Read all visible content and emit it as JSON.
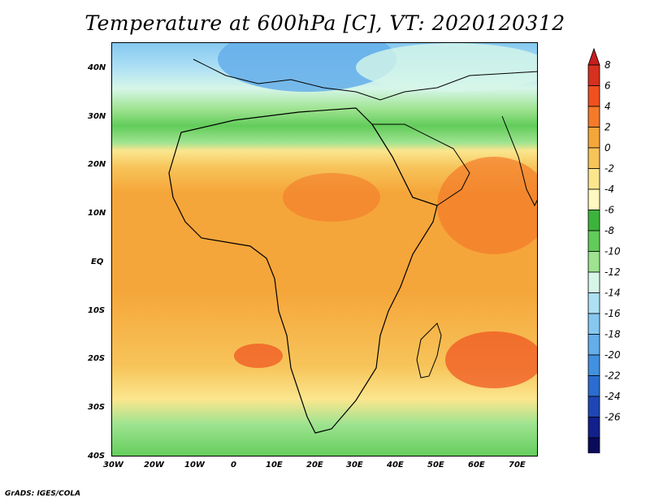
{
  "title": "Temperature at 600hPa [C], VT: 2020120312",
  "footer": "GrADS: IGES/COLA",
  "axes": {
    "x_ticks": [
      "30W",
      "20W",
      "10W",
      "0",
      "10E",
      "20E",
      "30E",
      "40E",
      "50E",
      "60E",
      "70E"
    ],
    "y_ticks": [
      "40N",
      "30N",
      "20N",
      "10N",
      "EQ",
      "10S",
      "20S",
      "30S",
      "40S"
    ]
  },
  "colorbar": {
    "labels": [
      "8",
      "6",
      "4",
      "2",
      "0",
      "-2",
      "-4",
      "-6",
      "-8",
      "-10",
      "-12",
      "-14",
      "-16",
      "-18",
      "-20",
      "-22",
      "-24",
      "-26"
    ],
    "colors": [
      "#d7301f",
      "#f0501e",
      "#f47a2a",
      "#f5a63a",
      "#f7c45a",
      "#fbe68e",
      "#fff8c0",
      "#3cb43c",
      "#62cc5a",
      "#9ee390",
      "#d6f6e8",
      "#aee0f4",
      "#86c8f0",
      "#64aeea",
      "#4290e0",
      "#2a6cd0",
      "#1e46b4",
      "#12208c",
      "#0a0a5a"
    ],
    "top_arrow_color": "#c81e1e",
    "bottom_arrow_color": "#e0e0ff"
  }
}
